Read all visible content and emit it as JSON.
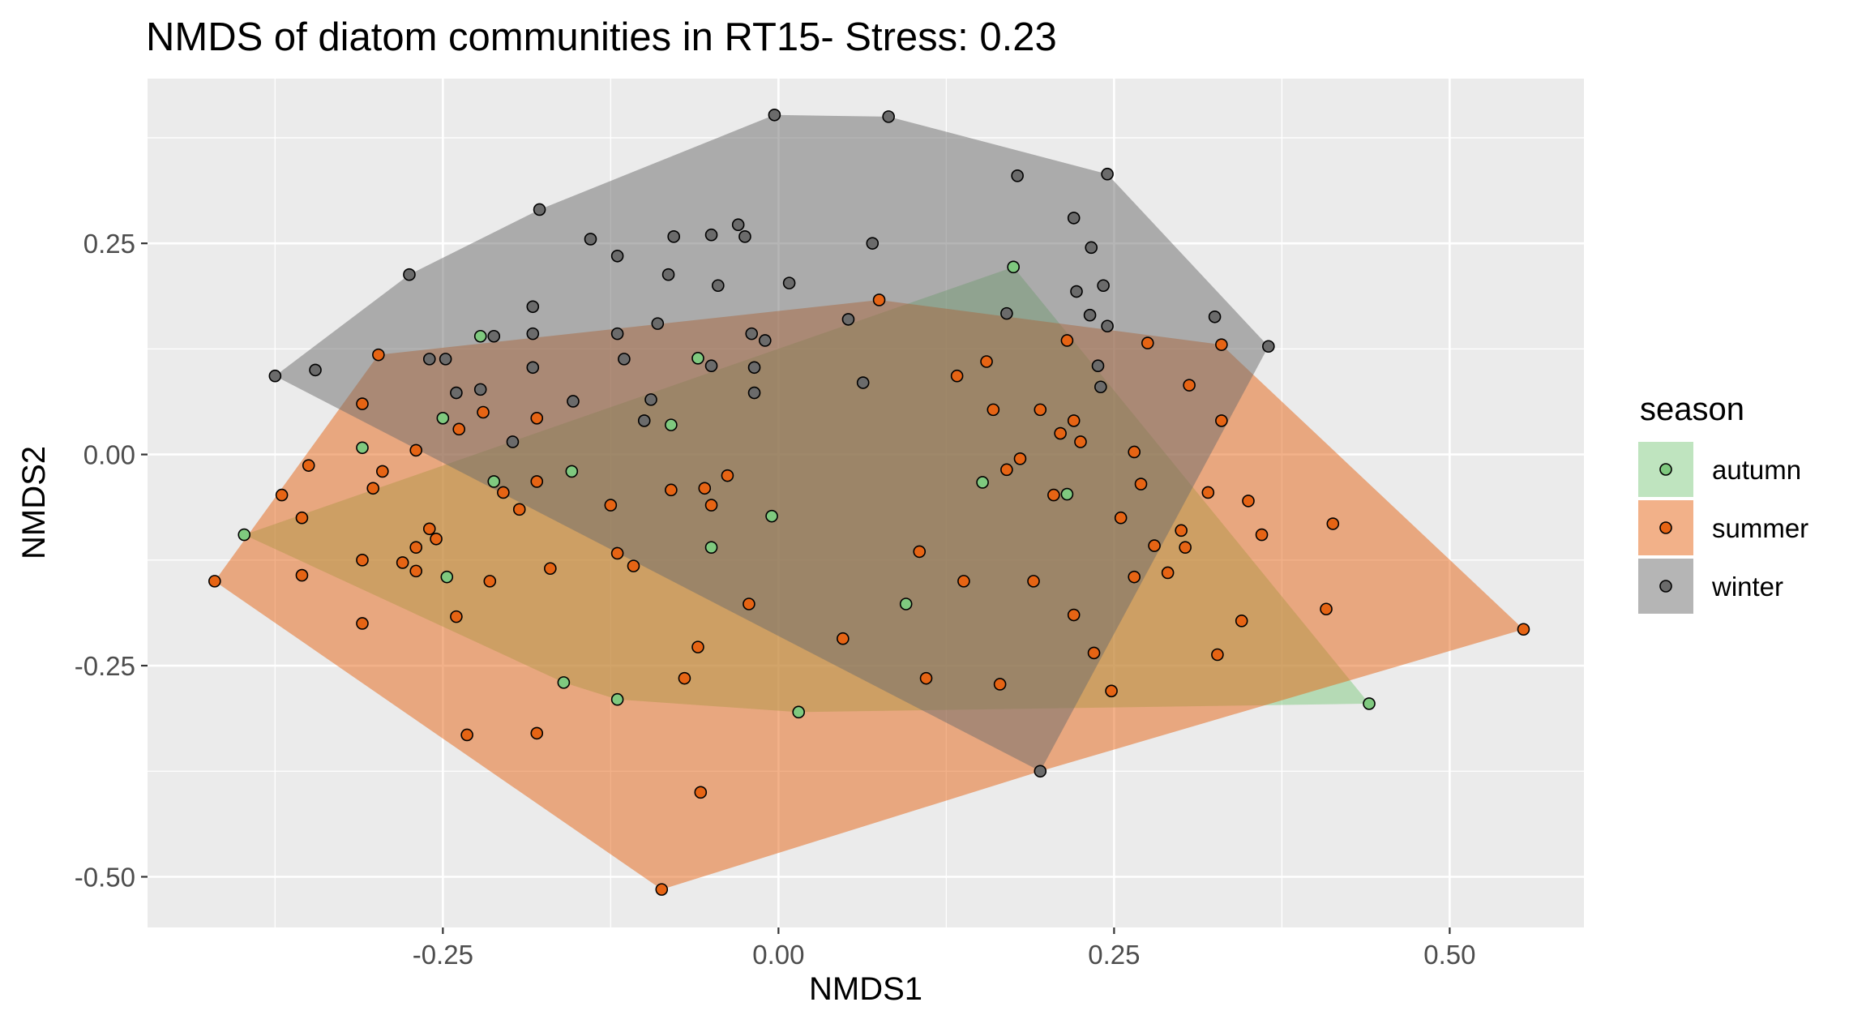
{
  "chart_data": {
    "type": "scatter",
    "title": "NMDS of diatom communities in RT15- Stress: 0.23",
    "xlabel": "NMDS1",
    "ylabel": "NMDS2",
    "xlim": [
      -0.47,
      0.6
    ],
    "ylim": [
      -0.56,
      0.445
    ],
    "xticks": [
      -0.25,
      0.0,
      0.25,
      0.5
    ],
    "xtick_labels": [
      "-0.25",
      "0.00",
      "0.25",
      "0.50"
    ],
    "yticks": [
      -0.5,
      -0.25,
      0.0,
      0.25
    ],
    "ytick_labels": [
      "-0.50",
      "-0.25",
      "0.00",
      "0.25"
    ],
    "grid": true,
    "legend": {
      "title": "season",
      "position": "right"
    },
    "series": [
      {
        "name": "autumn",
        "color": "#7fc97f",
        "hull": [
          [
            -0.398,
            -0.095
          ],
          [
            0.175,
            0.222
          ],
          [
            0.44,
            -0.295
          ],
          [
            0.015,
            -0.305
          ],
          [
            -0.12,
            -0.29
          ],
          [
            -0.16,
            -0.27
          ]
        ],
        "points": [
          [
            -0.398,
            -0.095
          ],
          [
            -0.31,
            0.008
          ],
          [
            -0.25,
            0.043
          ],
          [
            -0.222,
            0.14
          ],
          [
            -0.212,
            -0.032
          ],
          [
            -0.154,
            -0.02
          ],
          [
            -0.247,
            -0.145
          ],
          [
            -0.16,
            -0.27
          ],
          [
            -0.12,
            -0.29
          ],
          [
            -0.06,
            0.114
          ],
          [
            -0.08,
            0.035
          ],
          [
            -0.05,
            -0.11
          ],
          [
            -0.005,
            -0.073
          ],
          [
            0.015,
            -0.305
          ],
          [
            0.095,
            -0.177
          ],
          [
            0.152,
            -0.033
          ],
          [
            0.175,
            0.222
          ],
          [
            0.215,
            -0.047
          ],
          [
            0.44,
            -0.295
          ]
        ]
      },
      {
        "name": "summer",
        "color": "#e66414",
        "hull": [
          [
            -0.42,
            -0.15
          ],
          [
            -0.298,
            0.118
          ],
          [
            0.075,
            0.183
          ],
          [
            0.33,
            0.13
          ],
          [
            0.555,
            -0.207
          ],
          [
            0.195,
            -0.375
          ],
          [
            -0.087,
            -0.515
          ]
        ],
        "points": [
          [
            -0.42,
            -0.15
          ],
          [
            -0.298,
            0.118
          ],
          [
            -0.31,
            0.06
          ],
          [
            -0.35,
            -0.013
          ],
          [
            -0.37,
            -0.048
          ],
          [
            -0.355,
            -0.075
          ],
          [
            -0.355,
            -0.143
          ],
          [
            -0.31,
            -0.125
          ],
          [
            -0.302,
            -0.04
          ],
          [
            -0.295,
            -0.02
          ],
          [
            -0.28,
            -0.128
          ],
          [
            -0.27,
            -0.138
          ],
          [
            -0.27,
            0.005
          ],
          [
            -0.26,
            -0.088
          ],
          [
            -0.27,
            -0.11
          ],
          [
            -0.255,
            -0.1
          ],
          [
            -0.24,
            -0.192
          ],
          [
            -0.238,
            0.03
          ],
          [
            -0.22,
            0.05
          ],
          [
            -0.215,
            -0.15
          ],
          [
            -0.205,
            -0.045
          ],
          [
            -0.193,
            -0.065
          ],
          [
            -0.18,
            -0.032
          ],
          [
            -0.18,
            0.043
          ],
          [
            -0.17,
            -0.135
          ],
          [
            -0.125,
            -0.06
          ],
          [
            -0.12,
            -0.117
          ],
          [
            -0.108,
            -0.132
          ],
          [
            -0.08,
            -0.042
          ],
          [
            -0.07,
            -0.265
          ],
          [
            -0.06,
            -0.228
          ],
          [
            -0.055,
            -0.04
          ],
          [
            -0.05,
            -0.06
          ],
          [
            -0.038,
            -0.025
          ],
          [
            -0.022,
            -0.177
          ],
          [
            -0.058,
            -0.4
          ],
          [
            -0.232,
            -0.332
          ],
          [
            -0.18,
            -0.33
          ],
          [
            -0.31,
            -0.2
          ],
          [
            -0.087,
            -0.515
          ],
          [
            0.048,
            -0.218
          ],
          [
            0.075,
            0.183
          ],
          [
            0.105,
            -0.115
          ],
          [
            0.11,
            -0.265
          ],
          [
            0.133,
            0.093
          ],
          [
            0.138,
            -0.15
          ],
          [
            0.155,
            0.11
          ],
          [
            0.16,
            0.053
          ],
          [
            0.165,
            -0.272
          ],
          [
            0.17,
            -0.018
          ],
          [
            0.18,
            -0.005
          ],
          [
            0.19,
            -0.15
          ],
          [
            0.195,
            0.053
          ],
          [
            0.205,
            -0.048
          ],
          [
            0.21,
            0.025
          ],
          [
            0.215,
            0.135
          ],
          [
            0.22,
            0.04
          ],
          [
            0.22,
            -0.19
          ],
          [
            0.225,
            0.015
          ],
          [
            0.235,
            -0.235
          ],
          [
            0.248,
            -0.28
          ],
          [
            0.255,
            -0.075
          ],
          [
            0.265,
            0.003
          ],
          [
            0.265,
            -0.145
          ],
          [
            0.27,
            -0.035
          ],
          [
            0.275,
            0.132
          ],
          [
            0.28,
            -0.108
          ],
          [
            0.29,
            -0.14
          ],
          [
            0.3,
            -0.09
          ],
          [
            0.303,
            -0.11
          ],
          [
            0.306,
            0.082
          ],
          [
            0.33,
            0.13
          ],
          [
            0.32,
            -0.045
          ],
          [
            0.327,
            -0.237
          ],
          [
            0.33,
            0.04
          ],
          [
            0.345,
            -0.197
          ],
          [
            0.35,
            -0.055
          ],
          [
            0.36,
            -0.095
          ],
          [
            0.408,
            -0.183
          ],
          [
            0.413,
            -0.082
          ],
          [
            0.555,
            -0.207
          ]
        ]
      },
      {
        "name": "winter",
        "color": "#6b6b6b",
        "hull": [
          [
            -0.375,
            0.093
          ],
          [
            -0.275,
            0.213
          ],
          [
            -0.178,
            0.29
          ],
          [
            -0.003,
            0.402
          ],
          [
            0.082,
            0.4
          ],
          [
            0.245,
            0.332
          ],
          [
            0.365,
            0.128
          ],
          [
            0.195,
            -0.375
          ]
        ],
        "points": [
          [
            -0.375,
            0.093
          ],
          [
            -0.345,
            0.1
          ],
          [
            -0.275,
            0.213
          ],
          [
            -0.26,
            0.113
          ],
          [
            -0.248,
            0.113
          ],
          [
            -0.24,
            0.073
          ],
          [
            -0.222,
            0.077
          ],
          [
            -0.212,
            0.14
          ],
          [
            -0.198,
            0.015
          ],
          [
            -0.183,
            0.143
          ],
          [
            -0.183,
            0.175
          ],
          [
            -0.183,
            0.103
          ],
          [
            -0.178,
            0.29
          ],
          [
            -0.153,
            0.063
          ],
          [
            -0.14,
            0.255
          ],
          [
            -0.12,
            0.235
          ],
          [
            -0.12,
            0.143
          ],
          [
            -0.115,
            0.113
          ],
          [
            -0.1,
            0.04
          ],
          [
            -0.095,
            0.065
          ],
          [
            -0.09,
            0.155
          ],
          [
            -0.082,
            0.213
          ],
          [
            -0.078,
            0.258
          ],
          [
            -0.05,
            0.26
          ],
          [
            -0.05,
            0.105
          ],
          [
            -0.045,
            0.2
          ],
          [
            -0.03,
            0.272
          ],
          [
            -0.025,
            0.258
          ],
          [
            -0.02,
            0.143
          ],
          [
            -0.018,
            0.103
          ],
          [
            -0.018,
            0.073
          ],
          [
            -0.01,
            0.135
          ],
          [
            -0.003,
            0.402
          ],
          [
            0.008,
            0.203
          ],
          [
            0.052,
            0.16
          ],
          [
            0.063,
            0.085
          ],
          [
            0.07,
            0.25
          ],
          [
            0.082,
            0.4
          ],
          [
            0.17,
            0.167
          ],
          [
            0.178,
            0.33
          ],
          [
            0.195,
            -0.375
          ],
          [
            0.22,
            0.28
          ],
          [
            0.222,
            0.193
          ],
          [
            0.232,
            0.165
          ],
          [
            0.233,
            0.245
          ],
          [
            0.238,
            0.105
          ],
          [
            0.24,
            0.08
          ],
          [
            0.242,
            0.2
          ],
          [
            0.245,
            0.152
          ],
          [
            0.245,
            0.332
          ],
          [
            0.325,
            0.163
          ],
          [
            0.365,
            0.128
          ]
        ]
      }
    ]
  }
}
